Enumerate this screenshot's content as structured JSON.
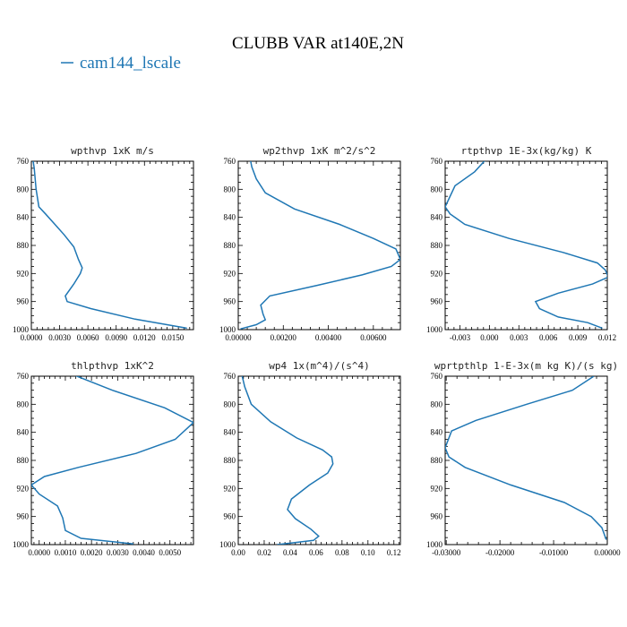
{
  "figure": {
    "title": "CLUBB VAR at140E,2N",
    "legend": {
      "label": "cam144_lscale",
      "color": "#1f77b4"
    }
  },
  "chart_data": [
    {
      "type": "line",
      "title": "wpthvp   1xK m/s",
      "xlim": [
        0.0,
        0.0172
      ],
      "ylim": [
        760,
        1000
      ],
      "y_reversed": true,
      "xticks": [
        0.0,
        0.003,
        0.006,
        0.009,
        0.012,
        0.015
      ],
      "xtick_labels": [
        "0.0000",
        "0.0030",
        "0.0060",
        "0.0090",
        "0.0120",
        "0.0150"
      ],
      "yticks": [
        760,
        800,
        840,
        880,
        920,
        960,
        1000
      ],
      "series": [
        {
          "name": "cam144_lscale",
          "color": "#1f77b4",
          "x": [
            0.0001,
            0.0003,
            0.0005,
            0.0008,
            0.0015,
            0.0025,
            0.0035,
            0.0045,
            0.005,
            0.0054,
            0.0052,
            0.0045,
            0.0036,
            0.0038,
            0.0063,
            0.011,
            0.0165
          ],
          "y": [
            752,
            770,
            800,
            825,
            835,
            850,
            865,
            882,
            900,
            912,
            920,
            935,
            952,
            960,
            970,
            985,
            998
          ]
        }
      ]
    },
    {
      "type": "line",
      "title": "wp2thvp   1xK m^2/s^2",
      "xlim": [
        0.0,
        0.0072
      ],
      "ylim": [
        760,
        1000
      ],
      "y_reversed": true,
      "xticks": [
        0.0,
        0.002,
        0.004,
        0.006
      ],
      "xtick_labels": [
        "0.00000",
        "0.00200",
        "0.00400",
        "0.00600"
      ],
      "yticks": [
        760,
        800,
        840,
        880,
        920,
        960,
        1000
      ],
      "series": [
        {
          "name": "cam144_lscale",
          "color": "#1f77b4",
          "x": [
            0.0005,
            0.0006,
            0.0008,
            0.0012,
            0.0025,
            0.0045,
            0.006,
            0.007,
            0.0072,
            0.0068,
            0.0055,
            0.0035,
            0.0014,
            0.001,
            0.0011,
            0.0012,
            0.0008,
            0.0001
          ],
          "y": [
            752,
            768,
            785,
            805,
            828,
            850,
            870,
            885,
            900,
            910,
            922,
            937,
            952,
            965,
            978,
            986,
            993,
            999
          ]
        }
      ]
    },
    {
      "type": "line",
      "title": "rtpthvp   1E-3x(kg/kg) K",
      "xlim": [
        -0.0045,
        0.012
      ],
      "ylim": [
        760,
        1000
      ],
      "y_reversed": true,
      "xticks": [
        -0.003,
        0.0,
        0.003,
        0.006,
        0.009,
        0.012
      ],
      "xtick_labels": [
        "-0.003",
        "0.000",
        "0.003",
        "0.006",
        "0.009",
        "0.012"
      ],
      "yticks": [
        760,
        800,
        840,
        880,
        920,
        960,
        1000
      ],
      "series": [
        {
          "name": "cam144_lscale",
          "color": "#1f77b4",
          "x": [
            -0.0002,
            -0.0015,
            -0.0035,
            -0.0045,
            -0.004,
            -0.0025,
            0.002,
            0.0075,
            0.011,
            0.0118,
            0.0121,
            0.0105,
            0.007,
            0.0047,
            0.0051,
            0.007,
            0.01,
            0.0115
          ],
          "y": [
            755,
            775,
            795,
            825,
            835,
            850,
            870,
            890,
            905,
            915,
            925,
            935,
            948,
            960,
            970,
            982,
            990,
            998
          ]
        }
      ]
    },
    {
      "type": "line",
      "title": "thlpthvp   1xK^2",
      "xlim": [
        -0.0003,
        0.0059
      ],
      "ylim": [
        760,
        1000
      ],
      "y_reversed": true,
      "xticks": [
        0.0,
        0.001,
        0.002,
        0.003,
        0.004,
        0.005
      ],
      "xtick_labels": [
        "0.0000",
        "0.0010",
        "0.0020",
        "0.0030",
        "0.0040",
        "0.0050"
      ],
      "yticks": [
        760,
        800,
        840,
        880,
        920,
        960,
        1000
      ],
      "series": [
        {
          "name": "cam144_lscale",
          "color": "#1f77b4",
          "x": [
            0.0011,
            0.0028,
            0.0048,
            0.0059,
            0.0052,
            0.0037,
            0.0015,
            0.0002,
            -0.0003,
            0.0,
            0.0007,
            0.0009,
            0.001,
            0.0016,
            0.0036
          ],
          "y": [
            755,
            780,
            805,
            826,
            850,
            870,
            890,
            903,
            915,
            928,
            945,
            962,
            980,
            991,
            999
          ]
        }
      ]
    },
    {
      "type": "line",
      "title": "wp4   1x(m^4)/(s^4)",
      "xlim": [
        0.0,
        0.125
      ],
      "ylim": [
        760,
        1000
      ],
      "y_reversed": true,
      "xticks": [
        0.0,
        0.02,
        0.04,
        0.06,
        0.08,
        0.1,
        0.12
      ],
      "xtick_labels": [
        "0.00",
        "0.02",
        "0.04",
        "0.06",
        "0.08",
        "0.10",
        "0.12"
      ],
      "yticks": [
        760,
        800,
        840,
        880,
        920,
        960,
        1000
      ],
      "series": [
        {
          "name": "cam144_lscale",
          "color": "#1f77b4",
          "x": [
            0.002,
            0.005,
            0.01,
            0.025,
            0.045,
            0.065,
            0.072,
            0.073,
            0.069,
            0.055,
            0.041,
            0.038,
            0.044,
            0.056,
            0.062,
            0.058,
            0.04,
            0.03
          ],
          "y": [
            752,
            775,
            800,
            825,
            848,
            865,
            875,
            885,
            898,
            915,
            935,
            950,
            963,
            978,
            988,
            994,
            998,
            1000
          ]
        }
      ]
    },
    {
      "type": "line",
      "title": "wprtpthlp   1-E-3x(m kg K)/(s kg)",
      "xlim": [
        -0.0302,
        0.0
      ],
      "ylim": [
        760,
        1000
      ],
      "y_reversed": true,
      "xticks": [
        -0.03,
        -0.02,
        -0.01,
        0.0
      ],
      "xtick_labels": [
        "-0.03000",
        "-0.02000",
        "-0.01000",
        "0.00000"
      ],
      "yticks": [
        760,
        800,
        840,
        880,
        920,
        960,
        1000
      ],
      "series": [
        {
          "name": "cam144_lscale",
          "color": "#1f77b4",
          "x": [
            -0.0025,
            -0.0065,
            -0.015,
            -0.0245,
            -0.029,
            -0.0302,
            -0.0295,
            -0.0265,
            -0.018,
            -0.008,
            -0.003,
            -0.001,
            -0.0002
          ],
          "y": [
            760,
            780,
            800,
            823,
            838,
            862,
            875,
            890,
            915,
            940,
            960,
            976,
            993
          ]
        }
      ]
    }
  ]
}
